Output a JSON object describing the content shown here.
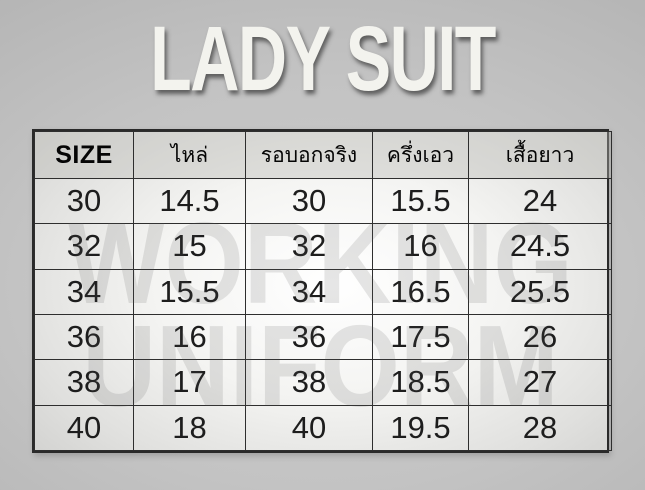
{
  "title": "LADY SUIT",
  "watermark": {
    "line1": "WORKING",
    "line2": "UNIFORM"
  },
  "chart_data": {
    "type": "table",
    "columns": [
      "SIZE",
      "ไหล่",
      "รอบอกจริง",
      "ครึ่งเอว",
      "เสื้อยาว"
    ],
    "rows": [
      [
        "30",
        "14.5",
        "30",
        "15.5",
        "24"
      ],
      [
        "32",
        "15",
        "32",
        "16",
        "24.5"
      ],
      [
        "34",
        "15.5",
        "34",
        "16.5",
        "25.5"
      ],
      [
        "36",
        "16",
        "36",
        "17.5",
        "26"
      ],
      [
        "38",
        "17",
        "38",
        "18.5",
        "27"
      ],
      [
        "40",
        "18",
        "40",
        "19.5",
        "28"
      ]
    ]
  },
  "colors": {
    "background_center": "#cbcbcb",
    "background_edge": "#a7a7a7",
    "table_border": "#2e2e2e",
    "header_background": "#d9d9d7",
    "cell_background": "#f4f4f2",
    "cell_text": "#1d1d1d",
    "title_text": "#f3f3ee",
    "watermark_text": "#585858"
  }
}
